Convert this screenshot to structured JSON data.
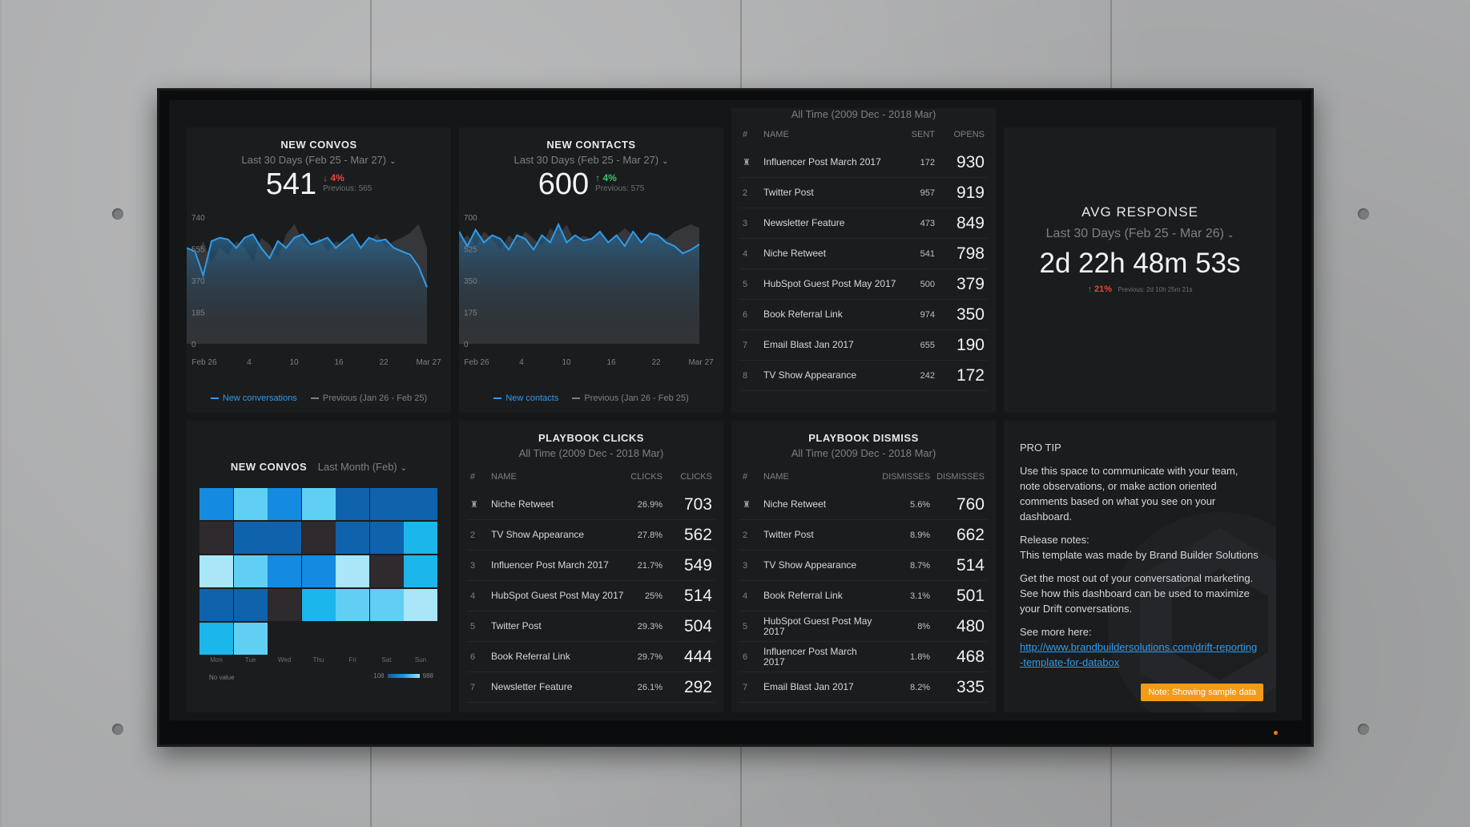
{
  "convos": {
    "title": "NEW CONVOS",
    "range": "Last 30 Days (Feb 25 - Mar 27)",
    "value": "541",
    "change": "↓ 4%",
    "previous": "Previous: 565",
    "y_ticks": [
      "740",
      "555",
      "370",
      "185",
      "0"
    ],
    "x_ticks": [
      "Feb 26",
      "4",
      "10",
      "16",
      "22",
      "Mar 27"
    ],
    "legend_current": "New conversations",
    "legend_previous": "Previous (Jan 26 - Feb 25)"
  },
  "contacts": {
    "title": "NEW CONTACTS",
    "range": "Last 30 Days (Feb 25 - Mar 27)",
    "value": "600",
    "change": "↑ 4%",
    "previous": "Previous: 575",
    "y_ticks": [
      "700",
      "525",
      "350",
      "175",
      "0"
    ],
    "x_ticks": [
      "Feb 26",
      "4",
      "10",
      "16",
      "22",
      "Mar 27"
    ],
    "legend_current": "New contacts",
    "legend_previous": "Previous (Jan 26 - Feb 25)"
  },
  "sent_table": {
    "range": "All Time (2009 Dec - 2018 Mar)",
    "headers": [
      "#",
      "NAME",
      "SENT",
      "OPENS"
    ],
    "rows": [
      {
        "rank": "🏆",
        "name": "Influencer Post March 2017",
        "a": "172",
        "b": "930"
      },
      {
        "rank": "2",
        "name": "Twitter Post",
        "a": "957",
        "b": "919"
      },
      {
        "rank": "3",
        "name": "Newsletter Feature",
        "a": "473",
        "b": "849"
      },
      {
        "rank": "4",
        "name": "Niche Retweet",
        "a": "541",
        "b": "798"
      },
      {
        "rank": "5",
        "name": "HubSpot Guest Post May 2017",
        "a": "500",
        "b": "379"
      },
      {
        "rank": "6",
        "name": "Book Referral Link",
        "a": "974",
        "b": "350"
      },
      {
        "rank": "7",
        "name": "Email Blast Jan 2017",
        "a": "655",
        "b": "190"
      },
      {
        "rank": "8",
        "name": "TV Show Appearance",
        "a": "242",
        "b": "172"
      }
    ]
  },
  "avg_response": {
    "title": "AVG RESPONSE",
    "range": "Last 30 Days (Feb 25 - Mar 26)",
    "value": "2d 22h 48m 53s",
    "change": "↑ 21%",
    "previous": "Previous: 2d 10h 25m 21s"
  },
  "heatmap": {
    "title": "NEW CONVOS",
    "range": "Last Month (Feb)",
    "days": [
      "Mon",
      "Tue",
      "Wed",
      "Thu",
      "Fri",
      "Sat",
      "Sun"
    ],
    "no_value": "No value",
    "min": "108",
    "max": "988",
    "levels": [
      [
        0.55,
        0.75,
        0.55,
        0.75,
        0.35,
        0.35,
        0.35
      ],
      [
        -1,
        0.35,
        0.35,
        -1,
        0.35,
        0.35,
        0.65
      ],
      [
        0.95,
        0.75,
        0.55,
        0.55,
        0.95,
        -1,
        0.65
      ],
      [
        0.3,
        0.35,
        -1,
        0.65,
        0.75,
        0.75,
        0.9
      ],
      [
        0.65,
        0.7
      ]
    ]
  },
  "clicks_table": {
    "title": "PLAYBOOK CLICKS",
    "range": "All Time (2009 Dec - 2018 Mar)",
    "headers": [
      "#",
      "NAME",
      "CLICKS",
      "CLICKS"
    ],
    "rows": [
      {
        "rank": "🏆",
        "name": "Niche Retweet",
        "a": "26.9%",
        "b": "703"
      },
      {
        "rank": "2",
        "name": "TV Show Appearance",
        "a": "27.8%",
        "b": "562"
      },
      {
        "rank": "3",
        "name": "Influencer Post March 2017",
        "a": "21.7%",
        "b": "549"
      },
      {
        "rank": "4",
        "name": "HubSpot Guest Post May 2017",
        "a": "25%",
        "b": "514"
      },
      {
        "rank": "5",
        "name": "Twitter Post",
        "a": "29.3%",
        "b": "504"
      },
      {
        "rank": "6",
        "name": "Book Referral Link",
        "a": "29.7%",
        "b": "444"
      },
      {
        "rank": "7",
        "name": "Newsletter Feature",
        "a": "26.1%",
        "b": "292"
      }
    ]
  },
  "dismiss_table": {
    "title": "PLAYBOOK DISMISS",
    "range": "All Time (2009 Dec - 2018 Mar)",
    "headers": [
      "#",
      "NAME",
      "DISMISSES",
      "DISMISSES"
    ],
    "rows": [
      {
        "rank": "🏆",
        "name": "Niche Retweet",
        "a": "5.6%",
        "b": "760"
      },
      {
        "rank": "2",
        "name": "Twitter Post",
        "a": "8.9%",
        "b": "662"
      },
      {
        "rank": "3",
        "name": "TV Show Appearance",
        "a": "8.7%",
        "b": "514"
      },
      {
        "rank": "4",
        "name": "Book Referral Link",
        "a": "3.1%",
        "b": "501"
      },
      {
        "rank": "5",
        "name": "HubSpot Guest Post May 2017",
        "a": "8%",
        "b": "480"
      },
      {
        "rank": "6",
        "name": "Influencer Post March 2017",
        "a": "1.8%",
        "b": "468"
      },
      {
        "rank": "7",
        "name": "Email Blast Jan 2017",
        "a": "8.2%",
        "b": "335"
      }
    ]
  },
  "protip": {
    "title": "PRO TIP",
    "p1": "Use this space to communicate with your team, note observations, or make action oriented comments based on what you see on your dashboard.",
    "p2a": "Release notes:",
    "p2b": "This template was made by Brand Builder Solutions",
    "p3a": "Get the most out of your conversational marketing.",
    "p3b": "See how this dashboard can be used to maximize your Drift conversations.",
    "p4a": "See more here:",
    "link": "http://www.brandbuildersolutions.com/drift-reporting-template-for-databox",
    "badge": "Note: Showing sample data"
  },
  "colors": {
    "accent": "#2f9bea",
    "negative": "#e8473c",
    "positive": "#3fc26a",
    "badge": "#f29b16"
  },
  "chart_data": [
    {
      "type": "line",
      "title": "NEW CONVOS",
      "series": [
        {
          "name": "New conversations",
          "values": [
            560,
            540,
            400,
            600,
            620,
            610,
            560,
            620,
            640,
            560,
            500,
            600,
            560,
            620,
            640,
            580,
            600,
            620,
            560,
            600,
            640,
            560,
            620,
            600,
            610,
            560,
            540,
            520,
            450,
            330
          ]
        },
        {
          "name": "Previous (Jan 26 - Feb 25)",
          "values": [
            560,
            520,
            600,
            480,
            560,
            520,
            600,
            560,
            480,
            620,
            580,
            500,
            640,
            700,
            600,
            560,
            620,
            540,
            600,
            580,
            620,
            560,
            600,
            640,
            560,
            600,
            620,
            650,
            700,
            560
          ]
        }
      ],
      "ylim": [
        0,
        740
      ]
    },
    {
      "type": "line",
      "title": "NEW CONTACTS",
      "series": [
        {
          "name": "New contacts",
          "values": [
            620,
            540,
            630,
            560,
            600,
            580,
            520,
            600,
            580,
            520,
            600,
            560,
            660,
            560,
            600,
            570,
            580,
            620,
            560,
            600,
            540,
            620,
            560,
            610,
            600,
            560,
            540,
            500,
            520,
            550
          ]
        },
        {
          "name": "Previous (Jan 26 - Feb 25)",
          "values": [
            560,
            600,
            540,
            620,
            580,
            520,
            600,
            560,
            620,
            580,
            540,
            640,
            600,
            660,
            560,
            600,
            580,
            620,
            560,
            600,
            640,
            600,
            560,
            620,
            600,
            580,
            620,
            640,
            660,
            640
          ]
        }
      ],
      "ylim": [
        0,
        700
      ]
    }
  ]
}
